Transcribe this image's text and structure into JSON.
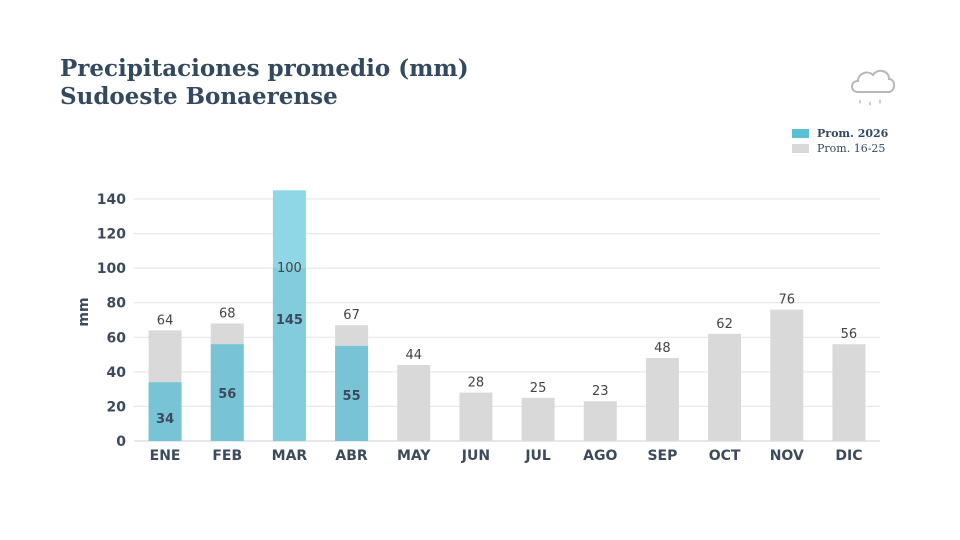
{
  "title": {
    "line1": "Precipitaciones promedio (mm)",
    "line2": "Sudoeste Bonaerense"
  },
  "icon": "rain-cloud-icon",
  "colors": {
    "current": "#5bbfd6",
    "current_bar": "#78c4d6",
    "current_overflow": "#8fd6e6",
    "historical": "#d9d9d9",
    "grid": "#e3e3e3",
    "text": "#34495e"
  },
  "legend": {
    "current_label": "Prom. 2026",
    "historical_label": "Prom. 16-25",
    "placement": "top-right"
  },
  "chart_data": {
    "type": "bar",
    "ylabel": "mm",
    "ylim": [
      0,
      140
    ],
    "yticks": [
      0,
      20,
      40,
      60,
      80,
      100,
      120,
      140
    ],
    "grid": true,
    "categories": [
      "ENE",
      "FEB",
      "MAR",
      "ABR",
      "MAY",
      "JUN",
      "JUL",
      "AGO",
      "SEP",
      "OCT",
      "NOV",
      "DIC"
    ],
    "series": [
      {
        "name": "Prom. 16-25",
        "values": [
          64,
          68,
          100,
          67,
          44,
          28,
          25,
          23,
          48,
          62,
          76,
          56
        ]
      },
      {
        "name": "Prom. 2026",
        "values": [
          34,
          56,
          145,
          55,
          null,
          null,
          null,
          null,
          null,
          null,
          null,
          null
        ]
      }
    ]
  }
}
